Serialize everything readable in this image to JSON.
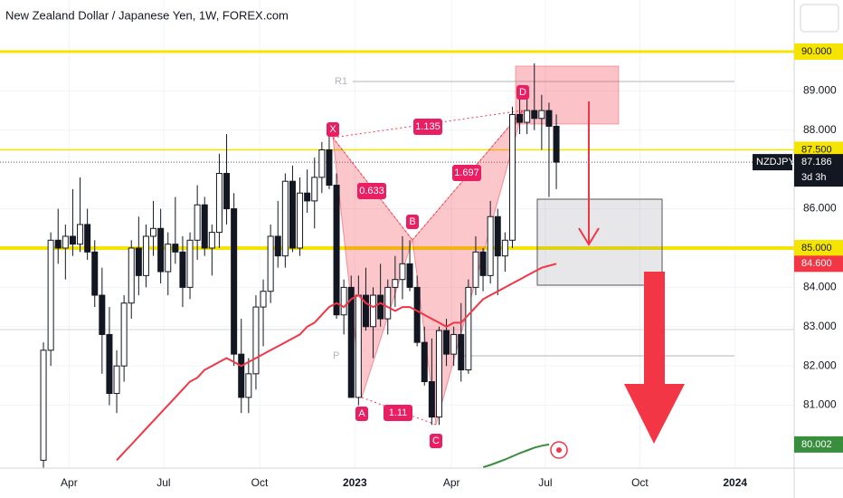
{
  "chart_data": {
    "type": "candlestick",
    "title": "New Zealand Dollar / Japanese Yen, 1W, FOREX.com",
    "categories": [
      null,
      null,
      null,
      null,
      null,
      null,
      null,
      null,
      null,
      null,
      null,
      null,
      null,
      null,
      null,
      null,
      null,
      null,
      null,
      null,
      null,
      null,
      null,
      null,
      null,
      null,
      null,
      null,
      null,
      null,
      null,
      null,
      null,
      null,
      null,
      null,
      null,
      null,
      null,
      null,
      null,
      null,
      null,
      null,
      null,
      null,
      null,
      null,
      null,
      null,
      null,
      null,
      null,
      null,
      null,
      null,
      null,
      null,
      null,
      null,
      null,
      null,
      null,
      null,
      null,
      null,
      null,
      null,
      null,
      null,
      null
    ],
    "open": [
      79.6,
      82.4,
      85.2,
      85.0,
      85.3,
      85.1,
      85.6,
      84.9,
      83.8,
      82.8,
      81.3,
      82.0,
      83.6,
      85.0,
      84.3,
      85.3,
      85.5,
      84.4,
      85.1,
      84.9,
      84.0,
      85.2,
      86.1,
      85.0,
      85.4,
      86.9,
      86.0,
      82.3,
      81.2,
      81.8,
      83.5,
      83.9,
      85.3,
      84.8,
      86.7,
      85.0,
      86.4,
      86.2,
      86.8,
      87.5,
      86.6,
      83.3,
      84.0,
      81.2,
      83.8,
      83.0,
      83.8,
      83.2,
      84.0,
      84.2,
      84.6,
      84.0,
      82.6,
      81.6,
      80.7,
      82.9,
      82.3,
      82.8,
      81.9,
      84.0,
      84.9,
      84.3,
      85.8,
      84.8,
      85.2,
      88.4,
      88.2,
      88.5,
      88.3,
      88.5,
      88.1
    ],
    "high": [
      82.6,
      85.4,
      86.0,
      85.6,
      86.5,
      86.8,
      86.0,
      85.2,
      84.5,
      83.5,
      82.4,
      83.8,
      85.2,
      85.8,
      85.6,
      86.2,
      86.0,
      85.4,
      86.3,
      85.3,
      85.4,
      86.6,
      86.3,
      85.6,
      87.4,
      87.9,
      86.4,
      83.2,
      82.2,
      83.8,
      84.2,
      85.6,
      86.2,
      86.9,
      87.1,
      86.8,
      87.0,
      87.3,
      87.7,
      87.9,
      86.9,
      84.2,
      84.3,
      84.3,
      84.5,
      84.0,
      84.6,
      84.2,
      84.8,
      85.3,
      85.2,
      84.3,
      83.0,
      82.7,
      83.0,
      83.2,
      83.0,
      83.6,
      84.2,
      85.3,
      85.0,
      86.2,
      86.0,
      85.4,
      88.6,
      88.9,
      89.0,
      89.7,
      88.9,
      88.7,
      88.4
    ],
    "low": [
      79.4,
      82.0,
      84.6,
      84.2,
      84.8,
      84.9,
      84.7,
      83.5,
      81.8,
      81.0,
      80.8,
      81.6,
      83.2,
      83.8,
      84.0,
      84.8,
      84.1,
      83.8,
      84.6,
      83.5,
      83.7,
      84.7,
      84.8,
      84.3,
      85.0,
      85.6,
      82.0,
      80.8,
      80.8,
      81.4,
      82.5,
      83.6,
      84.5,
      84.5,
      84.9,
      84.8,
      85.9,
      85.5,
      86.4,
      86.5,
      83.2,
      82.8,
      81.2,
      81.0,
      82.9,
      82.2,
      83.0,
      82.8,
      83.5,
      83.7,
      83.9,
      82.5,
      81.5,
      80.5,
      80.5,
      82.0,
      82.0,
      81.6,
      81.8,
      83.8,
      83.9,
      84.1,
      83.8,
      84.4,
      85.0,
      87.9,
      87.9,
      88.0,
      87.5,
      86.3,
      86.5
    ],
    "close": [
      82.4,
      85.2,
      85.0,
      85.3,
      85.1,
      85.6,
      84.9,
      83.8,
      82.8,
      81.3,
      82.0,
      83.6,
      85.0,
      84.3,
      85.3,
      85.5,
      84.4,
      85.1,
      84.9,
      84.0,
      85.2,
      86.1,
      85.0,
      85.4,
      86.9,
      86.0,
      82.3,
      81.2,
      81.8,
      83.5,
      83.9,
      85.3,
      84.8,
      86.7,
      85.0,
      86.4,
      86.2,
      86.8,
      87.5,
      86.6,
      83.3,
      84.0,
      81.2,
      83.8,
      83.0,
      83.8,
      83.2,
      84.0,
      84.2,
      84.6,
      84.0,
      82.6,
      81.6,
      80.7,
      82.9,
      82.3,
      82.8,
      81.9,
      84.0,
      84.9,
      84.3,
      85.8,
      84.8,
      85.2,
      88.4,
      88.2,
      88.5,
      88.3,
      88.5,
      88.1,
      87.186
    ],
    "series": [
      {
        "color": "#f23645",
        "values": [
          null,
          null,
          null,
          null,
          null,
          null,
          null,
          null,
          null,
          null,
          79.6,
          79.8,
          80.0,
          80.2,
          80.4,
          80.6,
          80.8,
          81.0,
          81.2,
          81.4,
          81.6,
          81.7,
          81.9,
          82.0,
          82.1,
          82.2,
          82.1,
          82.0,
          82.1,
          82.2,
          82.3,
          82.4,
          82.5,
          82.6,
          82.7,
          82.8,
          83.0,
          83.1,
          83.3,
          83.5,
          83.6,
          83.5,
          83.7,
          83.8,
          83.6,
          83.5,
          83.6,
          83.5,
          83.4,
          83.5,
          83.5,
          83.4,
          83.3,
          83.2,
          83.1,
          83.0,
          83.1,
          83.1,
          83.3,
          83.5,
          83.7,
          83.8,
          83.9,
          84.0,
          84.1,
          84.2,
          84.3,
          84.4,
          84.5,
          84.55,
          84.6
        ]
      },
      {
        "color": "#388e3c",
        "values": [
          null,
          null,
          null,
          null,
          null,
          null,
          null,
          null,
          null,
          null,
          null,
          null,
          null,
          null,
          null,
          null,
          null,
          null,
          null,
          null,
          null,
          null,
          null,
          null,
          null,
          null,
          null,
          null,
          null,
          null,
          null,
          null,
          null,
          null,
          null,
          null,
          null,
          null,
          null,
          null,
          null,
          null,
          null,
          null,
          null,
          null,
          null,
          null,
          null,
          null,
          null,
          null,
          null,
          null,
          null,
          null,
          null,
          null,
          null,
          null,
          79.42,
          79.48,
          79.55,
          79.62,
          79.7,
          79.78,
          79.85,
          79.92,
          79.97,
          80.002,
          null
        ]
      }
    ],
    "levels": [
      {
        "value": 90.0,
        "label": "90.000",
        "color": "#f5e400",
        "width": 3
      },
      {
        "value": 87.5,
        "label": "87.500",
        "color": "#f5e400",
        "width": 1.5
      },
      {
        "value": 85.0,
        "label": "85.000",
        "color": "#f5e400",
        "width": 4
      }
    ],
    "ma_label": {
      "value": 84.6,
      "label": "84.600"
    },
    "green_label": {
      "value": 80.002,
      "label": "80.002"
    },
    "current": {
      "symbol": "NZDJPY",
      "value": 87.186,
      "label": "87.186",
      "countdown": "3d 3h"
    },
    "pattern": {
      "points": [
        "X",
        "A",
        "B",
        "C",
        "D"
      ],
      "ratios": [
        "0.633",
        "1.11",
        "1.697",
        "1.135"
      ]
    },
    "pivots": [
      "R1",
      "P"
    ],
    "ylim": [
      79.4,
      91.313
    ],
    "yticks": [
      {
        "value": 81,
        "label": "81.000"
      },
      {
        "value": 82,
        "label": "82.000"
      },
      {
        "value": 83,
        "label": "83.000"
      },
      {
        "value": 84,
        "label": "84.000"
      },
      {
        "value": 86,
        "label": "86.000"
      },
      {
        "value": 88,
        "label": "88.000"
      },
      {
        "value": 89,
        "label": "89.000"
      }
    ],
    "xlim": [
      -5.93,
      102.46
    ],
    "xticks": [
      {
        "value": 3.5,
        "label": "Apr"
      },
      {
        "value": 16.4,
        "label": "Jul"
      },
      {
        "value": 29.5,
        "label": "Oct"
      },
      {
        "value": 42.5,
        "label": "2023"
      },
      {
        "value": 55.7,
        "label": "Apr"
      },
      {
        "value": 68.5,
        "label": "Jul"
      },
      {
        "value": 81.4,
        "label": "Oct"
      },
      {
        "value": 94.4,
        "label": "2024"
      }
    ],
    "grid": true
  }
}
